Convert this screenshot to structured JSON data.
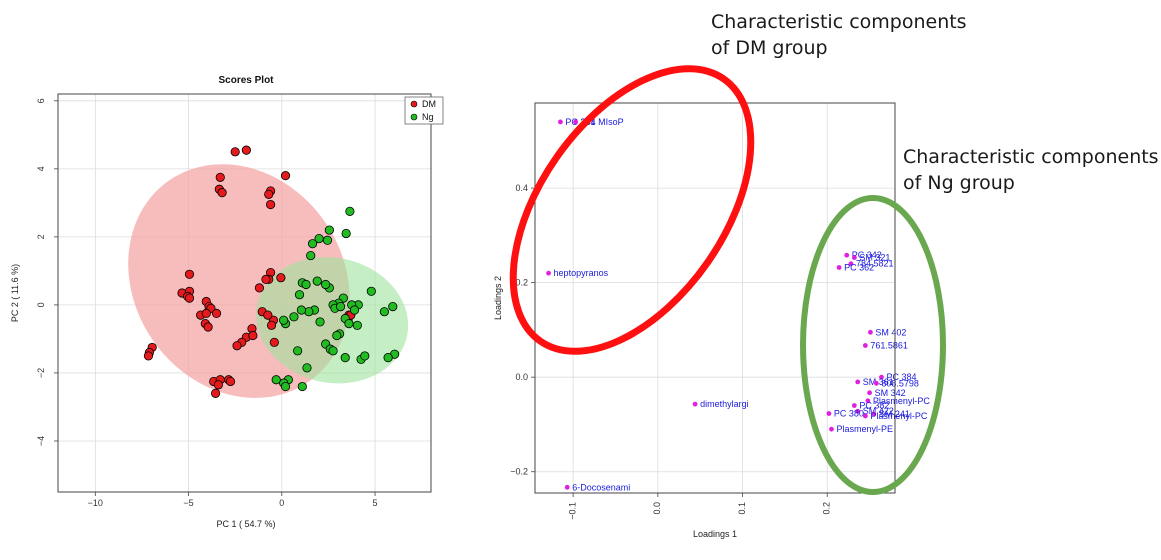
{
  "annotations": {
    "dm_line1": "Characteristic components",
    "dm_line2": "of DM group",
    "ng_line1": "Characteristic components",
    "ng_line2": "of Ng group"
  },
  "colors": {
    "dm_point": "#e41a1c",
    "ng_point": "#22bb22",
    "dm_ellipse": "#f4a6a6",
    "ng_ellipse": "#9ee39e",
    "loading_point": "#e020e0",
    "loading_label": "#1a1adb",
    "dm_annotation_ring": "#ff1010",
    "ng_annotation_ring": "#6aa84f"
  },
  "chart_data": [
    {
      "type": "scatter",
      "title": "Scores Plot",
      "xlabel": "PC 1 ( 54.7 %)",
      "ylabel": "PC 2 ( 11.6 %)",
      "xlim": [
        -12,
        8
      ],
      "ylim": [
        -5.5,
        6.2
      ],
      "xticks": [
        -10,
        -5,
        0,
        5
      ],
      "yticks": [
        -4,
        -2,
        0,
        2,
        4,
        6
      ],
      "grid": true,
      "legend": {
        "position": "top-right",
        "entries": [
          "DM",
          "Ng"
        ]
      },
      "series": [
        {
          "name": "DM",
          "points": [
            [
              -2.5,
              4.5
            ],
            [
              -1.9,
              4.55
            ],
            [
              -3.3,
              3.75
            ],
            [
              -3.35,
              3.4
            ],
            [
              -3.2,
              3.3
            ],
            [
              -0.6,
              3.35
            ],
            [
              -0.7,
              3.25
            ],
            [
              0.2,
              3.8
            ],
            [
              -0.6,
              2.95
            ],
            [
              -4.95,
              0.9
            ],
            [
              -5.35,
              0.35
            ],
            [
              -4.95,
              0.4
            ],
            [
              -5.05,
              0.25
            ],
            [
              -4.95,
              0.2
            ],
            [
              -4.05,
              0.1
            ],
            [
              -3.9,
              -0.05
            ],
            [
              -3.8,
              -0.1
            ],
            [
              -4.35,
              -0.3
            ],
            [
              -4.05,
              -0.25
            ],
            [
              -3.5,
              -0.25
            ],
            [
              -4.1,
              -0.55
            ],
            [
              -3.95,
              -0.65
            ],
            [
              -1.05,
              -0.2
            ],
            [
              -0.45,
              -0.45
            ],
            [
              -0.55,
              -0.6
            ],
            [
              -1.6,
              -0.7
            ],
            [
              -1.9,
              -0.95
            ],
            [
              -2.15,
              -1.1
            ],
            [
              -2.4,
              -1.2
            ],
            [
              -1.55,
              -0.9
            ],
            [
              -0.4,
              -1.1
            ],
            [
              -0.75,
              -0.3
            ],
            [
              -0.6,
              0.95
            ],
            [
              -0.7,
              0.75
            ],
            [
              -0.85,
              0.75
            ],
            [
              -1.2,
              0.5
            ],
            [
              -0.05,
              0.8
            ],
            [
              -6.95,
              -1.25
            ],
            [
              -7.1,
              -1.4
            ],
            [
              -7.15,
              -1.5
            ],
            [
              -3.65,
              -2.25
            ],
            [
              -3.3,
              -2.2
            ],
            [
              -3.4,
              -2.35
            ],
            [
              -3.55,
              -2.6
            ],
            [
              -2.85,
              -2.2
            ],
            [
              -2.75,
              -2.25
            ],
            [
              3.6,
              -0.3
            ],
            [
              3.55,
              -0.45
            ],
            [
              3.7,
              -0.3
            ]
          ]
        },
        {
          "name": "Ng",
          "points": [
            [
              3.65,
              2.75
            ],
            [
              3.45,
              2.1
            ],
            [
              2.55,
              2.2
            ],
            [
              2.45,
              1.9
            ],
            [
              2.0,
              1.95
            ],
            [
              1.65,
              1.8
            ],
            [
              1.55,
              1.45
            ],
            [
              1.1,
              0.65
            ],
            [
              1.3,
              0.6
            ],
            [
              0.95,
              0.3
            ],
            [
              1.9,
              0.7
            ],
            [
              2.55,
              0.5
            ],
            [
              2.35,
              0.6
            ],
            [
              4.1,
              0.0
            ],
            [
              4.8,
              0.4
            ],
            [
              5.5,
              -0.2
            ],
            [
              5.95,
              -0.05
            ],
            [
              3.3,
              0.2
            ],
            [
              3.05,
              0.05
            ],
            [
              2.75,
              0.0
            ],
            [
              2.85,
              -0.1
            ],
            [
              3.15,
              -0.05
            ],
            [
              3.75,
              0.0
            ],
            [
              3.4,
              -0.4
            ],
            [
              3.9,
              -0.15
            ],
            [
              4.05,
              -0.6
            ],
            [
              3.6,
              -0.55
            ],
            [
              3.1,
              -0.85
            ],
            [
              2.95,
              -0.9
            ],
            [
              2.05,
              -0.5
            ],
            [
              1.75,
              -0.15
            ],
            [
              1.45,
              -0.2
            ],
            [
              1.05,
              -0.15
            ],
            [
              0.65,
              -0.35
            ],
            [
              0.2,
              -0.55
            ],
            [
              0.1,
              -0.45
            ],
            [
              2.35,
              -1.15
            ],
            [
              2.6,
              -1.3
            ],
            [
              2.75,
              -1.35
            ],
            [
              3.4,
              -1.55
            ],
            [
              4.25,
              -1.6
            ],
            [
              4.45,
              -1.5
            ],
            [
              6.05,
              -1.45
            ],
            [
              5.7,
              -1.55
            ],
            [
              1.35,
              -1.85
            ],
            [
              0.35,
              -2.2
            ],
            [
              0.1,
              -2.3
            ],
            [
              -0.3,
              -2.2
            ],
            [
              1.1,
              -2.4
            ],
            [
              0.2,
              -2.4
            ],
            [
              0.85,
              -1.35
            ]
          ]
        }
      ],
      "confidence_ellipses": [
        {
          "group": "DM",
          "center": [
            -2.3,
            0.7
          ],
          "semi_axes": [
            5.6,
            3.6
          ],
          "angle_deg": 35
        },
        {
          "group": "Ng",
          "center": [
            2.7,
            -0.45
          ],
          "semi_axes": [
            3.35,
            2.25
          ],
          "angle_deg": 78
        }
      ]
    },
    {
      "type": "scatter",
      "title": "",
      "xlabel": "Loadings 1",
      "ylabel": "Loadings 2",
      "xlim": [
        -0.145,
        0.28
      ],
      "ylim": [
        -0.245,
        0.58
      ],
      "xticks": [
        -0.1,
        0.0,
        0.1,
        0.2
      ],
      "yticks": [
        -0.2,
        0.0,
        0.2,
        0.4
      ],
      "grid": true,
      "points": [
        {
          "x": -0.115,
          "y": 0.54,
          "label": "PC 361"
        },
        {
          "x": -0.097,
          "y": 0.54,
          "label": "344 MIsoP"
        },
        {
          "x": -0.129,
          "y": 0.22,
          "label": "heptopyranos"
        },
        {
          "x": 0.044,
          "y": -0.057,
          "label": "dimethylargi"
        },
        {
          "x": -0.107,
          "y": -0.233,
          "label": "6-Docosenami"
        },
        {
          "x": 0.223,
          "y": 0.258,
          "label": "PC 342"
        },
        {
          "x": 0.232,
          "y": 0.253,
          "label": "SM 321"
        },
        {
          "x": 0.228,
          "y": 0.24,
          "label": "784.5821"
        },
        {
          "x": 0.214,
          "y": 0.232,
          "label": "PC 362"
        },
        {
          "x": 0.251,
          "y": 0.095,
          "label": "SM 402"
        },
        {
          "x": 0.245,
          "y": 0.067,
          "label": "761.5861"
        },
        {
          "x": 0.264,
          "y": 0.0,
          "label": "PC 384"
        },
        {
          "x": 0.236,
          "y": -0.01,
          "label": "SM 361"
        },
        {
          "x": 0.258,
          "y": -0.013,
          "label": "808.5798"
        },
        {
          "x": 0.25,
          "y": -0.033,
          "label": "SM 342"
        },
        {
          "x": 0.248,
          "y": -0.05,
          "label": "Plasmenyl-PC"
        },
        {
          "x": 0.232,
          "y": -0.06,
          "label": "PC 382"
        },
        {
          "x": 0.236,
          "y": -0.072,
          "label": "SM 422"
        },
        {
          "x": 0.255,
          "y": -0.078,
          "label": "SM 241"
        },
        {
          "x": 0.245,
          "y": -0.082,
          "label": "Plasmenyl-PC"
        },
        {
          "x": 0.202,
          "y": -0.077,
          "label": "PC 380"
        },
        {
          "x": 0.205,
          "y": -0.11,
          "label": "Plasmenyl-PE"
        }
      ]
    }
  ]
}
